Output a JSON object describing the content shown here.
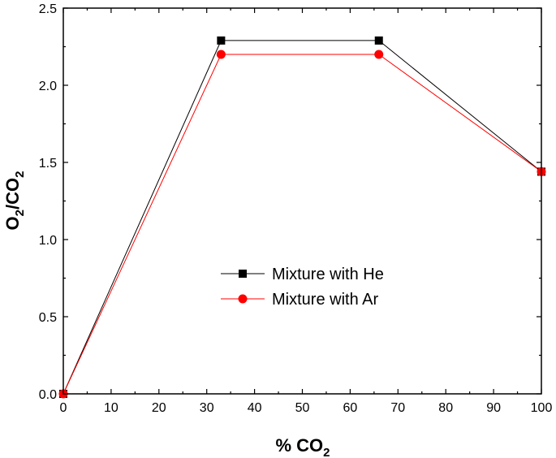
{
  "chart_data": {
    "type": "line",
    "xlabel": "% CO",
    "xlabel_sub": "2",
    "ylabel": {
      "a": "O",
      "a_sub": "2",
      "mid": "/CO",
      "b_sub": "2"
    },
    "xlim": [
      0,
      100
    ],
    "ylim": [
      0.0,
      2.5
    ],
    "x_ticks": [
      0,
      10,
      20,
      30,
      40,
      50,
      60,
      70,
      80,
      90,
      100
    ],
    "y_ticks": [
      "0.0",
      "0.5",
      "1.0",
      "1.5",
      "2.0",
      "2.5"
    ],
    "grid": false,
    "legend_position": "center",
    "series": [
      {
        "name": "Mixture with He",
        "color": "#000000",
        "marker": "square",
        "x": [
          0,
          33,
          66,
          100
        ],
        "y": [
          0.0,
          2.29,
          2.29,
          1.44
        ]
      },
      {
        "name": "Mixture with Ar",
        "color": "#ff0000",
        "marker": "circle",
        "x": [
          0,
          33,
          66,
          100
        ],
        "y": [
          0.0,
          2.2,
          2.2,
          1.44
        ]
      }
    ]
  }
}
